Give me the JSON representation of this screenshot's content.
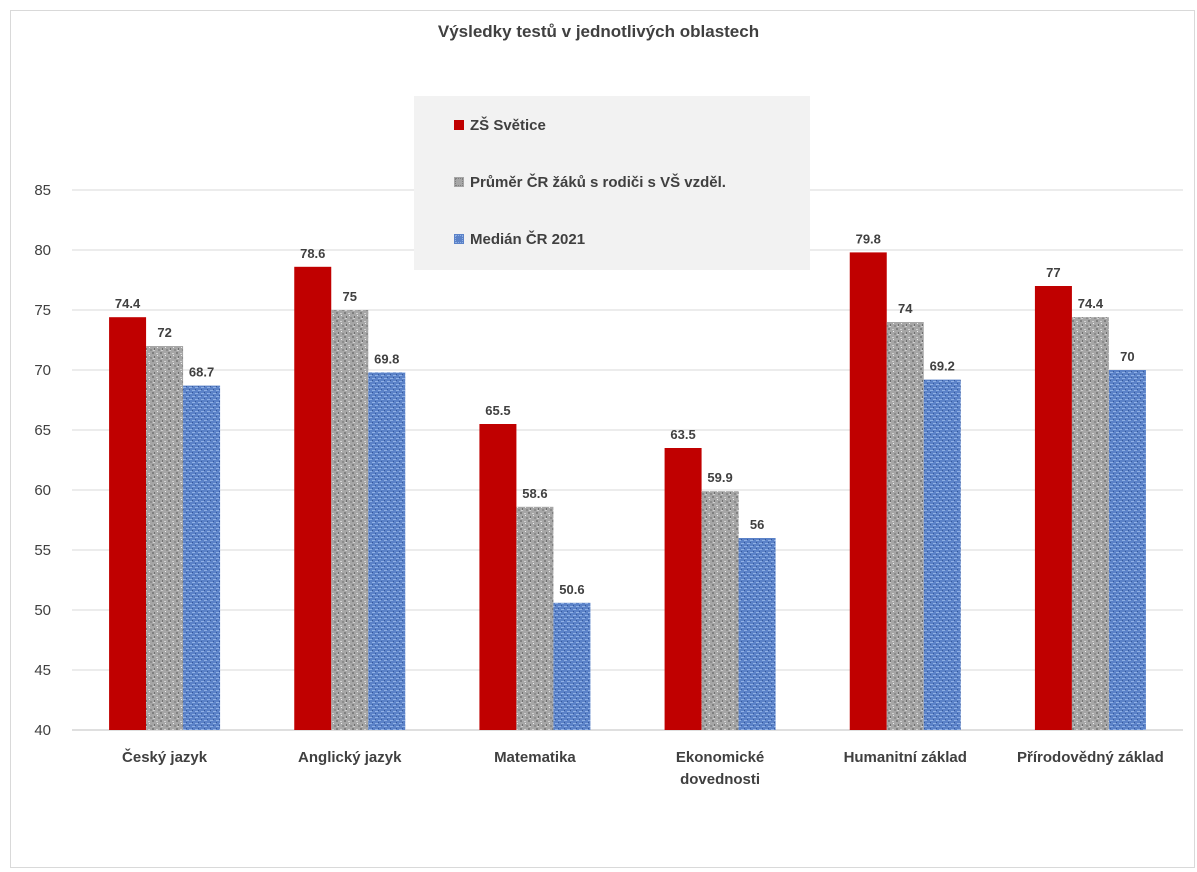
{
  "chart_data": {
    "type": "bar",
    "title": "Výsledky testů v jednotlivých oblastech",
    "xlabel": "",
    "ylabel": "",
    "ylim": [
      40,
      85
    ],
    "yticks": [
      40,
      45,
      50,
      55,
      60,
      65,
      70,
      75,
      80,
      85
    ],
    "grid": true,
    "legend_position": "top-center",
    "categories": [
      [
        "Český jazyk"
      ],
      [
        "Anglický jazyk"
      ],
      [
        "Matematika"
      ],
      [
        "Ekonomické",
        "dovednosti"
      ],
      [
        "Humanitní základ"
      ],
      [
        "Přírodovědný základ"
      ]
    ],
    "series": [
      {
        "name": "ZŠ Světice",
        "color": "#c00000",
        "pattern": "solid",
        "values": [
          74.4,
          78.6,
          65.5,
          63.5,
          79.8,
          77
        ],
        "labels": [
          "74.4",
          "78.6",
          "65.5",
          "63.5",
          "79.8",
          "77"
        ]
      },
      {
        "name": "Průměr ČR žáků s rodiči s VŠ vzděl.",
        "color": "#a6a6a6",
        "pattern": "granite",
        "values": [
          72,
          75,
          58.6,
          59.9,
          74,
          74.4
        ],
        "labels": [
          "72",
          "75",
          "58.6",
          "59.9",
          "74",
          "74.4"
        ]
      },
      {
        "name": "Medián ČR 2021",
        "color": "#4472c4",
        "pattern": "weave",
        "values": [
          68.7,
          69.8,
          50.6,
          56,
          69.2,
          70
        ],
        "labels": [
          "68.7",
          "69.8",
          "50.6",
          "56",
          "69.2",
          "70"
        ]
      }
    ]
  }
}
